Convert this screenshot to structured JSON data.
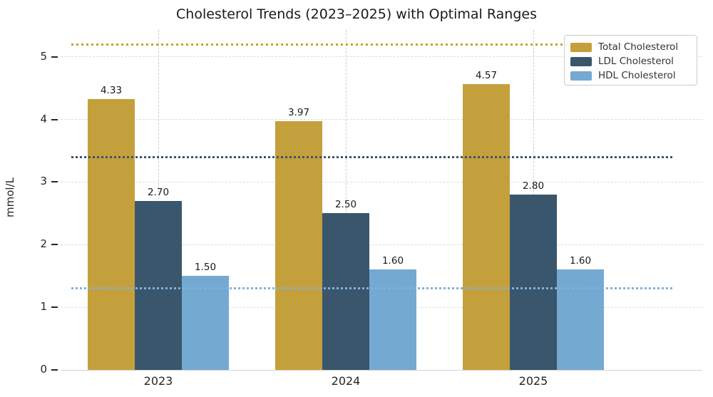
{
  "chart_data": {
    "type": "bar",
    "title": "Cholesterol Trends (2023–2025) with Optimal Ranges",
    "ylabel": "mmol/L",
    "xlabel": "",
    "categories": [
      "2023",
      "2024",
      "2025"
    ],
    "series": [
      {
        "name": "Total Cholesterol",
        "color": "#c4a03c",
        "values": [
          4.33,
          3.97,
          4.57
        ],
        "bar_labels": [
          "4.33",
          "3.97",
          "4.57"
        ]
      },
      {
        "name": "LDL Cholesterol",
        "color": "#3a566c",
        "values": [
          2.7,
          2.5,
          2.8
        ],
        "bar_labels": [
          "2.70",
          "2.50",
          "2.80"
        ]
      },
      {
        "name": "HDL Cholesterol",
        "color": "#74a9d2",
        "values": [
          1.5,
          1.6,
          1.6
        ],
        "bar_labels": [
          "1.50",
          "1.60",
          "1.60"
        ]
      }
    ],
    "reference_lines": [
      {
        "name": "total-cholesterol-optimal-max",
        "value": 5.2,
        "color": "#c9a227",
        "style": "dotted"
      },
      {
        "name": "ldl-cholesterol-optimal-max",
        "value": 3.4,
        "color": "#3a566c",
        "style": "dotted"
      },
      {
        "name": "hdl-cholesterol-optimal-min",
        "value": 1.3,
        "color": "#7fb2dc",
        "style": "dotted"
      }
    ],
    "yticks": [
      0,
      1,
      2,
      3,
      4,
      5
    ],
    "ytick_labels": [
      "0",
      "1",
      "2",
      "3",
      "4",
      "5"
    ],
    "ylim": [
      0,
      5.43
    ],
    "grid": true,
    "legend_position": "upper right"
  }
}
